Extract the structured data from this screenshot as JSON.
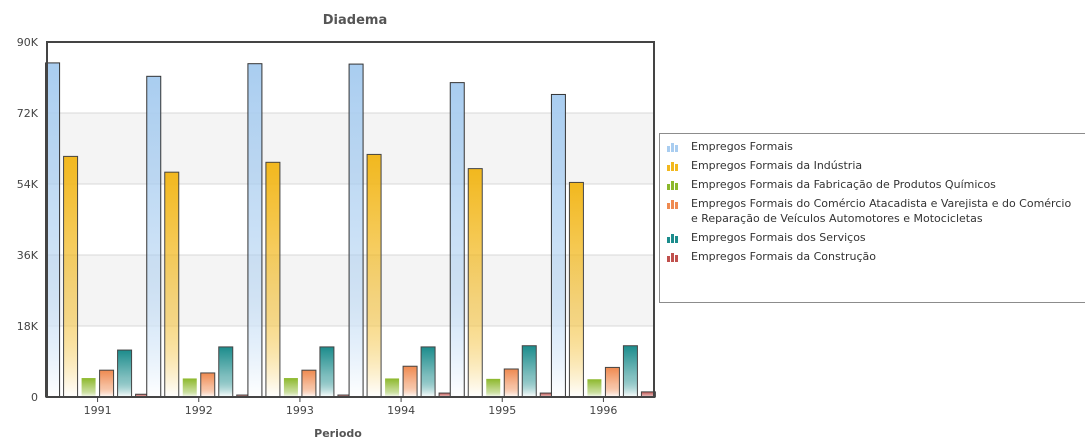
{
  "chart_data": {
    "type": "bar",
    "title": "Diadema",
    "xlabel": "Periodo",
    "ylabel": "",
    "ylim": [
      0,
      90000
    ],
    "yticks": [
      0,
      18000,
      36000,
      54000,
      72000,
      90000
    ],
    "ytick_labels": [
      "0",
      "18K",
      "36K",
      "54K",
      "72K",
      "90K"
    ],
    "grid": true,
    "legend_position": "right",
    "categories": [
      "1991",
      "1992",
      "1993",
      "1994",
      "1995",
      "1996"
    ],
    "series": [
      {
        "name": "Empregos Formais",
        "color": "#a9cdf0",
        "values": [
          84700,
          81300,
          84500,
          84400,
          79700,
          76700
        ]
      },
      {
        "name": "Empregos Formais da Indústria",
        "color": "#f2b81e",
        "values": [
          61000,
          57000,
          59500,
          61500,
          57900,
          54400
        ]
      },
      {
        "name": "Empregos Formais da Fabricação de Produtos Químicos",
        "color": "#8cb82c",
        "values": [
          4800,
          4700,
          4800,
          4700,
          4600,
          4500
        ]
      },
      {
        "name": "Empregos Formais do Comércio Atacadista e Varejista e do Comércio e Reparação de Veículos Automotores e Motocicletas",
        "color": "#ef8a50",
        "values": [
          6800,
          6100,
          6800,
          7800,
          7100,
          7500
        ]
      },
      {
        "name": "Empregos Formais dos Serviços",
        "color": "#1c8c8c",
        "values": [
          11900,
          12700,
          12700,
          12700,
          13000,
          13000
        ]
      },
      {
        "name": "Empregos Formais da Construção",
        "color": "#c0504d",
        "values": [
          700,
          500,
          500,
          1000,
          1000,
          1300
        ]
      }
    ]
  }
}
